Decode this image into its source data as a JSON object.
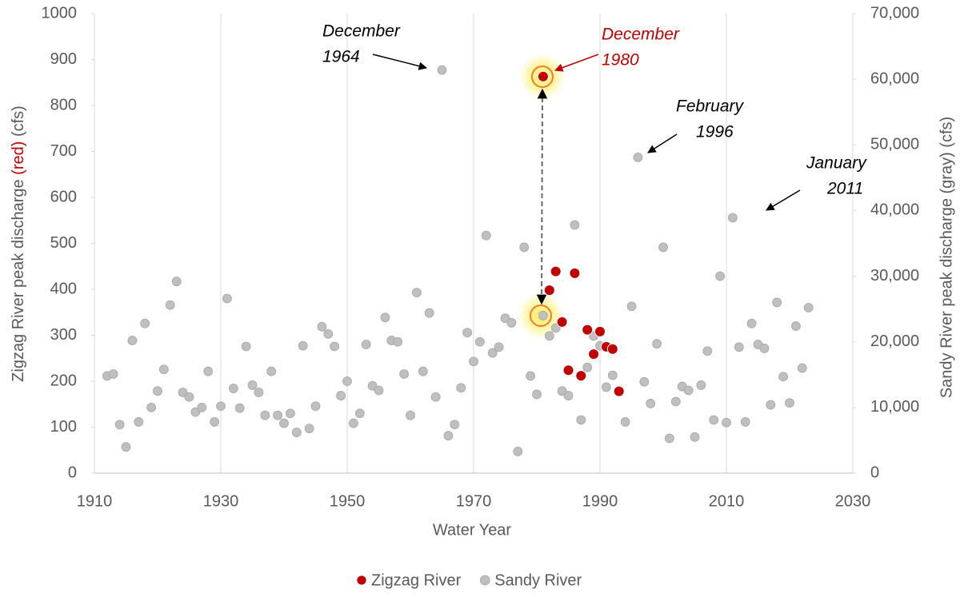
{
  "chart_data": {
    "type": "scatter",
    "x_label": "Water Year",
    "y_label": [
      "Zigzag River peak discharge ",
      "(red)",
      " (cfs)"
    ],
    "y2_label": "Sandy River peak discharge  (gray) (cfs)",
    "xlim": [
      1910,
      2030
    ],
    "xticks": [
      1910,
      1930,
      1950,
      1970,
      1990,
      2010,
      2030
    ],
    "ylim": [
      0,
      1000
    ],
    "yticks": [
      0,
      100,
      200,
      300,
      400,
      500,
      600,
      700,
      800,
      900,
      1000
    ],
    "y2lim": [
      0,
      70000
    ],
    "y2ticks": [
      0,
      {
        "value": 10000,
        "label": "10,000"
      },
      {
        "value": 20000,
        "label": "20,000"
      },
      {
        "value": 30000,
        "label": "30,000"
      },
      {
        "value": 40000,
        "label": "40,000"
      },
      {
        "value": 50000,
        "label": "50,000"
      },
      {
        "value": 60000,
        "label": "60,000"
      },
      {
        "value": 70000,
        "label": "70,000"
      }
    ],
    "grid": "x",
    "legend": "bottom",
    "series": [
      {
        "name": "Zigzag River",
        "color": "#c00000",
        "axis": "y",
        "x": [
          1981,
          1982,
          1983,
          1984,
          1985,
          1986,
          1987,
          1988,
          1989,
          1990,
          1991,
          1992,
          1993
        ],
        "values": [
          863,
          398,
          439,
          329,
          224,
          435,
          212,
          312,
          259,
          308,
          275,
          270,
          178
        ]
      },
      {
        "name": "Sandy River",
        "color": "#bfbfbf",
        "axis": "y2",
        "x": [
          1912,
          1913,
          1914,
          1915,
          1916,
          1917,
          1918,
          1919,
          1920,
          1921,
          1922,
          1923,
          1924,
          1925,
          1926,
          1927,
          1928,
          1929,
          1930,
          1931,
          1932,
          1933,
          1934,
          1935,
          1936,
          1937,
          1938,
          1939,
          1940,
          1941,
          1942,
          1943,
          1944,
          1945,
          1946,
          1947,
          1948,
          1949,
          1950,
          1951,
          1952,
          1953,
          1954,
          1955,
          1956,
          1957,
          1958,
          1959,
          1960,
          1961,
          1962,
          1963,
          1964,
          1965,
          1966,
          1967,
          1968,
          1969,
          1970,
          1971,
          1972,
          1973,
          1974,
          1975,
          1976,
          1977,
          1978,
          1979,
          1980,
          1981,
          1982,
          1983,
          1984,
          1985,
          1986,
          1987,
          1988,
          1989,
          1990,
          1991,
          1992,
          1993,
          1994,
          1995,
          1996,
          1997,
          1998,
          1999,
          2000,
          2001,
          2002,
          2003,
          2004,
          2005,
          2006,
          2007,
          2008,
          2009,
          2010,
          2011,
          2012,
          2013,
          2014,
          2015,
          2016,
          2017,
          2018,
          2019,
          2020,
          2021,
          2022,
          2023
        ],
        "values": [
          14800,
          15100,
          7400,
          4000,
          20200,
          7800,
          22800,
          10000,
          12500,
          15800,
          25600,
          29200,
          12300,
          11600,
          9300,
          10000,
          15500,
          7800,
          10200,
          26600,
          12900,
          9900,
          19300,
          13400,
          12300,
          8800,
          15500,
          8800,
          7600,
          9100,
          6200,
          19400,
          6800,
          10200,
          22300,
          21200,
          19300,
          11800,
          14000,
          7600,
          9100,
          19600,
          13300,
          12600,
          23700,
          20200,
          20000,
          15100,
          8800,
          27500,
          15500,
          24400,
          11600,
          61400,
          5700,
          7400,
          13000,
          21400,
          17000,
          20000,
          36200,
          18300,
          19200,
          23600,
          22900,
          3300,
          34400,
          14800,
          12000,
          24000,
          20900,
          22100,
          12500,
          11800,
          37800,
          8100,
          16100,
          20900,
          19400,
          13100,
          14900,
          12500,
          7800,
          25400,
          48100,
          13900,
          10600,
          19700,
          34400,
          5300,
          10900,
          13200,
          12600,
          5500,
          13400,
          18600,
          8100,
          30000,
          7700,
          38900,
          19200,
          7800,
          22800,
          19600,
          19000,
          10400,
          26000,
          14700,
          10700,
          22400,
          16000,
          25200
        ]
      }
    ],
    "annotations": [
      {
        "lines": [
          "December",
          "1964"
        ]
      },
      {
        "lines": [
          "December",
          "1980"
        ]
      },
      {
        "lines": [
          "February",
          "1996"
        ]
      },
      {
        "lines": [
          "January",
          "2011"
        ]
      }
    ]
  }
}
